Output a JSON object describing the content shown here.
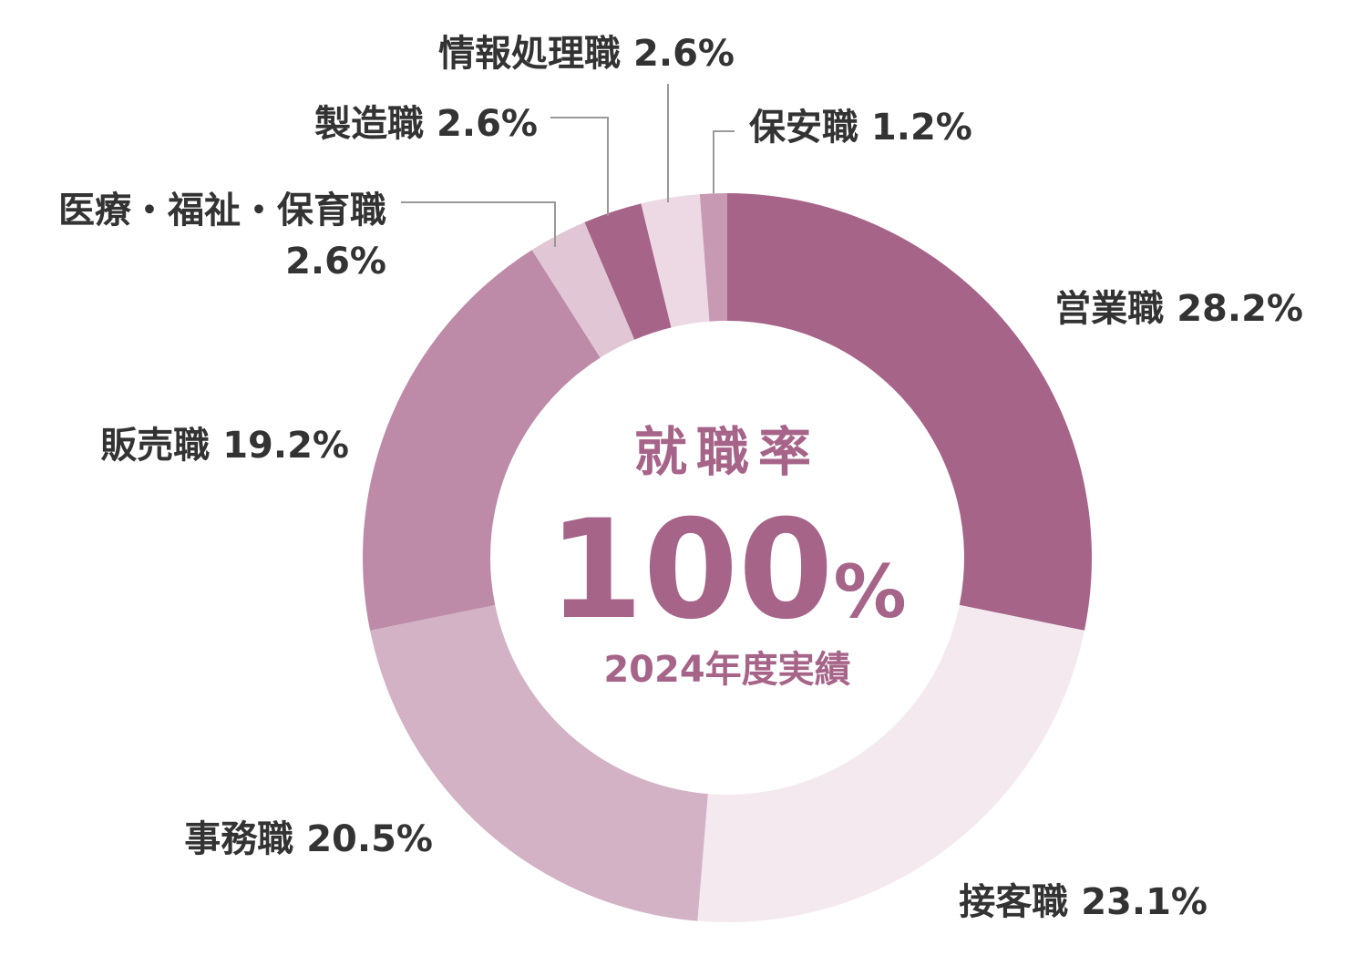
{
  "chart_data": {
    "type": "pie",
    "variant": "donut",
    "unit": "%",
    "categories": [
      "営業職",
      "接客職",
      "事務職",
      "販売職",
      "医療・福祉・保育職",
      "製造職",
      "情報処理職",
      "保安職"
    ],
    "values": [
      28.2,
      23.1,
      20.5,
      19.2,
      2.6,
      2.6,
      2.6,
      1.2
    ],
    "labels": [
      "営業職 28.2%",
      "接客職 23.1%",
      "事務職 20.5%",
      "販売職 19.2%",
      "医療・福祉・保育職",
      "製造職 2.6%",
      "情報処理職 2.6%",
      "保安職 1.2%"
    ],
    "label_second_lines": {
      "4": "2.6%"
    },
    "colors": [
      "#a76489",
      "#f4e9ef",
      "#d3b2c6",
      "#bd8ba7",
      "#e1c7d5",
      "#a76489",
      "#ecd9e3",
      "#c899b3"
    ],
    "leader_lines": [
      4,
      5,
      6,
      7
    ],
    "start": "12 o'clock",
    "direction": "clockwise",
    "center": {
      "title": "就職率",
      "value": "100",
      "unit": "%",
      "subtitle": "2024年度実績",
      "color": "#a76489"
    }
  }
}
